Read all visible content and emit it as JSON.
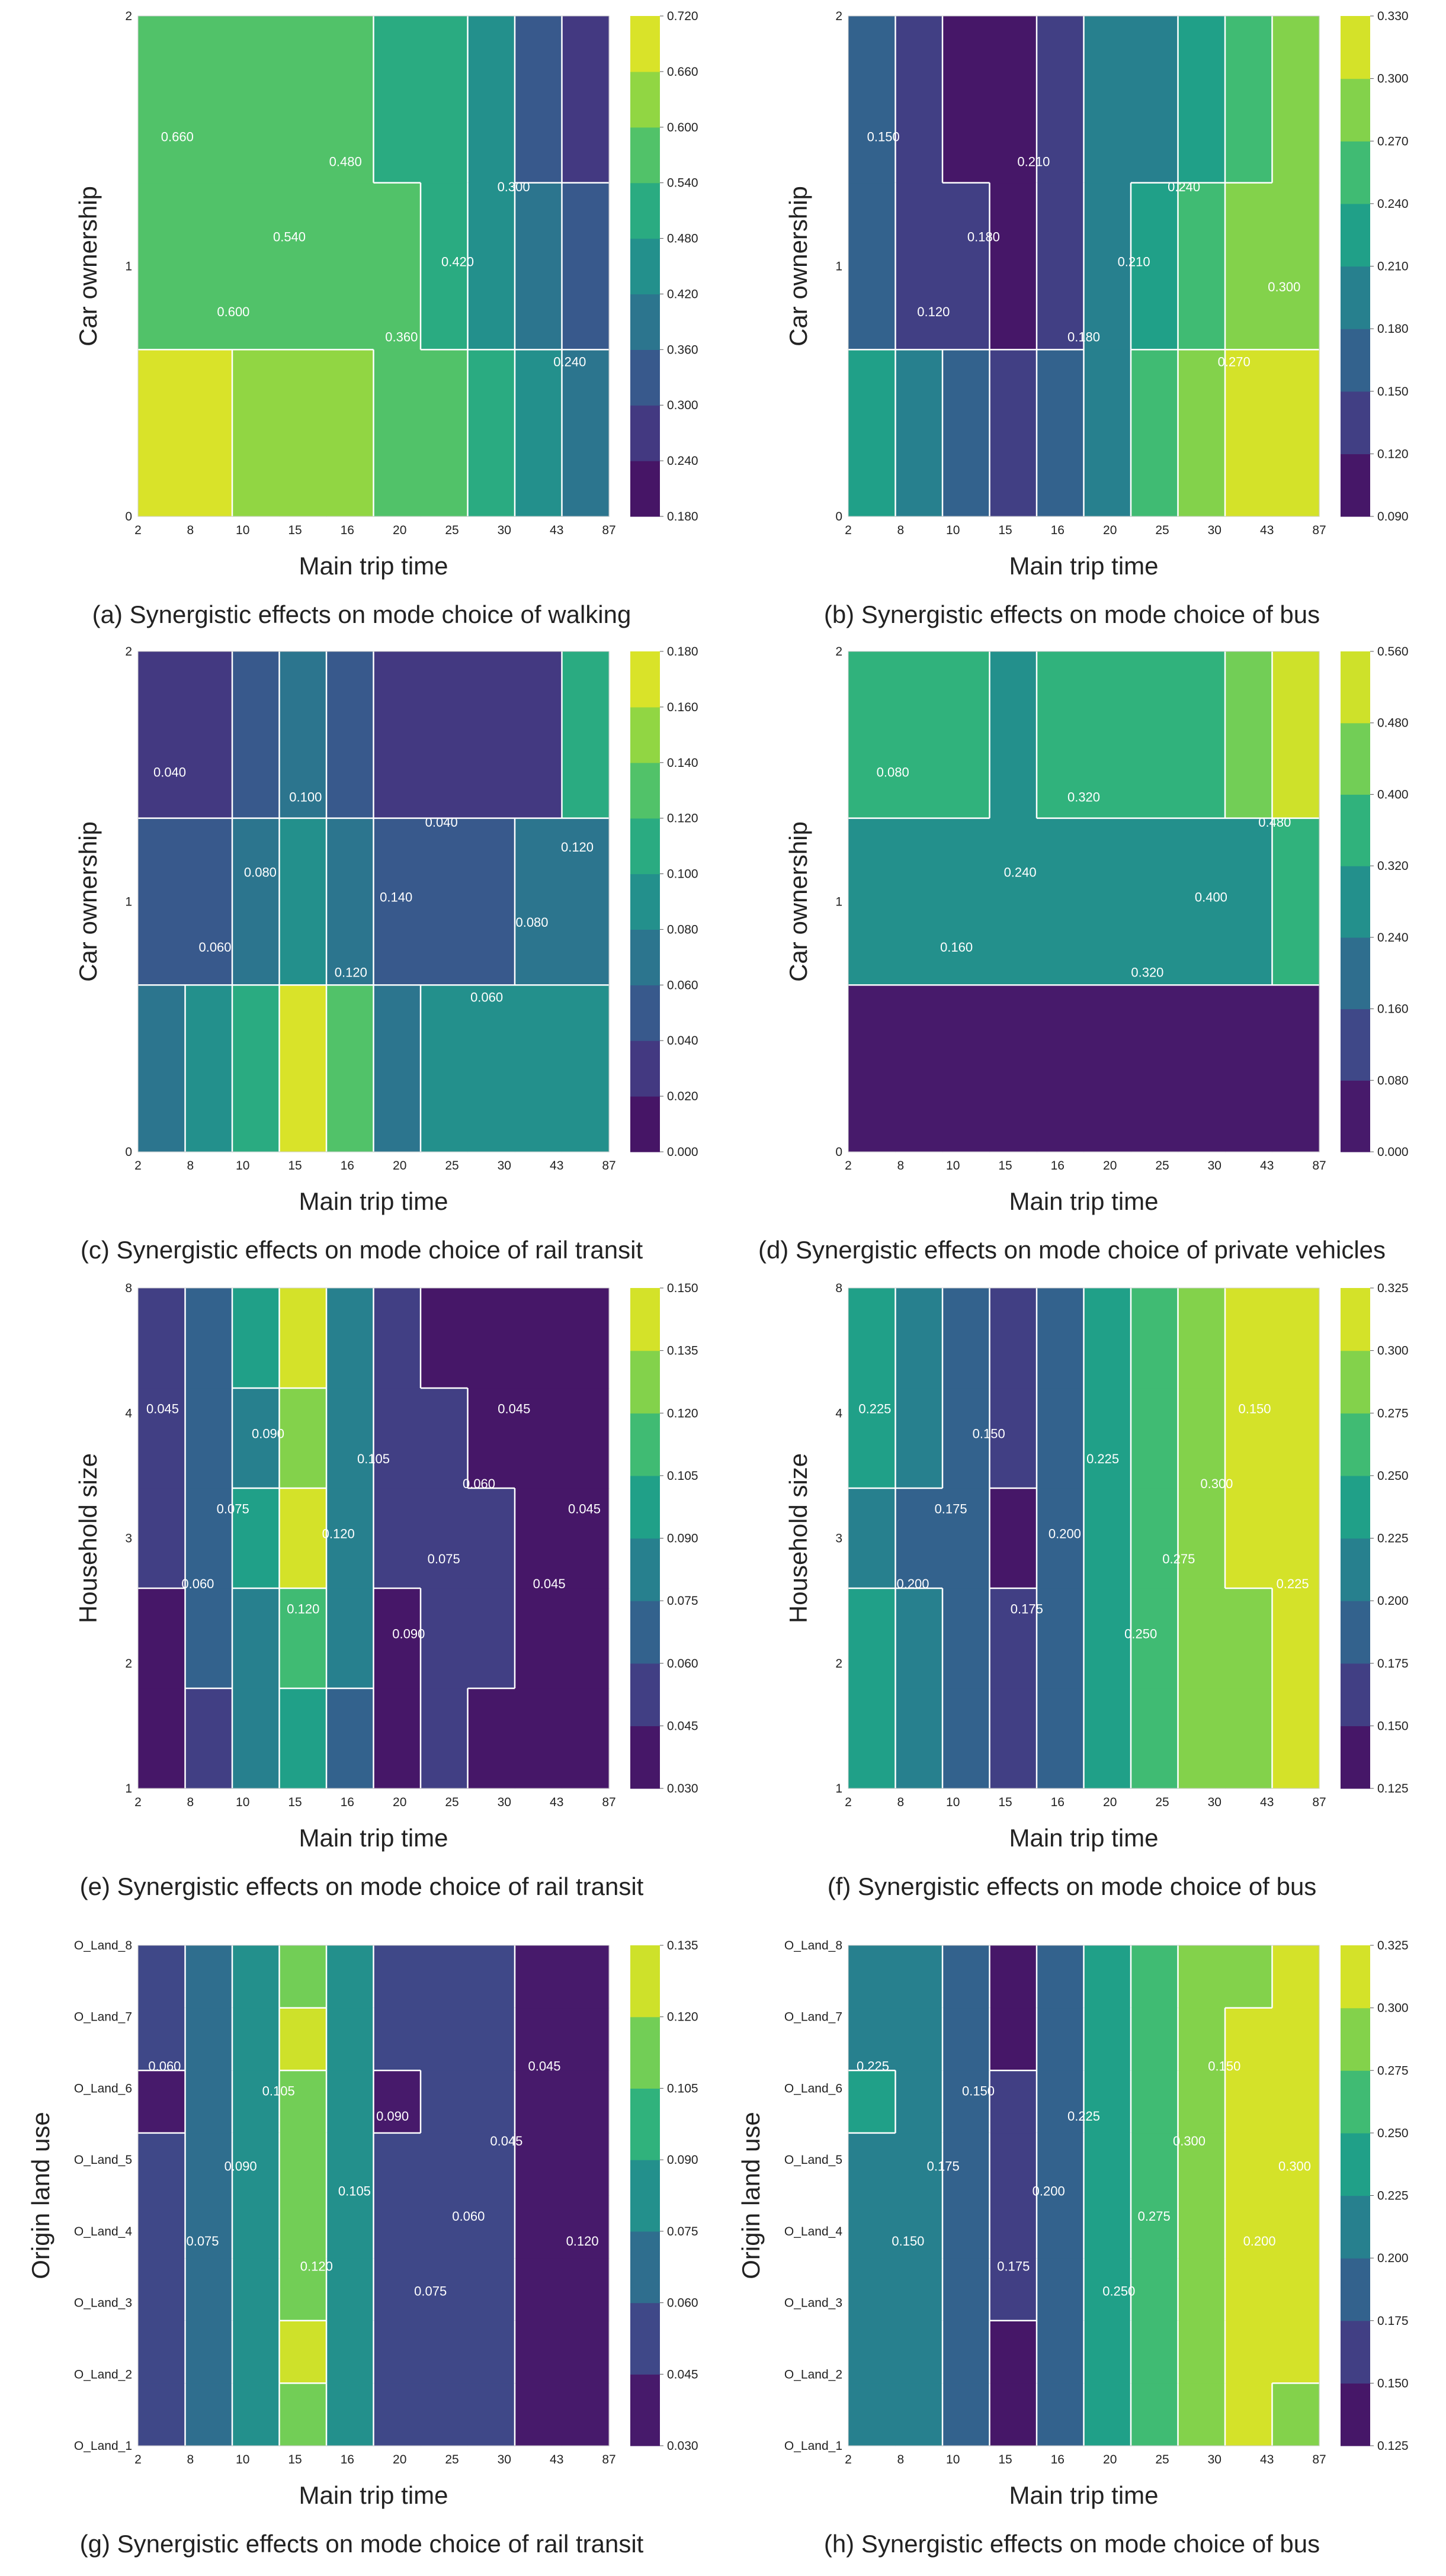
{
  "page": {
    "background": "#ffffff"
  },
  "chart_data": [
    {
      "type": "heatmap",
      "caption": "(a) Synergistic effects on mode choice of walking",
      "xlabel": "Main trip time",
      "ylabel": "Car ownership",
      "x": [
        "2",
        "8",
        "10",
        "15",
        "16",
        "20",
        "25",
        "30",
        "43",
        "87"
      ],
      "y": [
        "0",
        "1",
        "2"
      ],
      "colorbar": {
        "ticks": [
          "0.180",
          "0.240",
          "0.300",
          "0.360",
          "0.420",
          "0.480",
          "0.540",
          "0.600",
          "0.660",
          "0.720"
        ],
        "min": 0.18,
        "max": 0.72
      },
      "values": [
        [
          0.66,
          0.66,
          0.64,
          0.62,
          0.61,
          0.59,
          0.55,
          0.5,
          0.46,
          0.4
        ],
        [
          0.57,
          0.58,
          0.6,
          0.57,
          0.56,
          0.55,
          0.53,
          0.48,
          0.4,
          0.34
        ],
        [
          0.54,
          0.55,
          0.55,
          0.55,
          0.54,
          0.52,
          0.49,
          0.45,
          0.35,
          0.28
        ]
      ],
      "contour_labels": [
        "0.660",
        "0.600",
        "0.540",
        "0.480",
        "0.360",
        "0.420",
        "0.300",
        "0.240"
      ]
    },
    {
      "type": "heatmap",
      "caption": "(b) Synergistic effects on mode choice of bus",
      "xlabel": "Main trip time",
      "ylabel": "Car ownership",
      "x": [
        "2",
        "8",
        "10",
        "15",
        "16",
        "20",
        "25",
        "30",
        "43",
        "87"
      ],
      "y": [
        "0",
        "1",
        "2"
      ],
      "colorbar": {
        "ticks": [
          "0.090",
          "0.120",
          "0.150",
          "0.180",
          "0.210",
          "0.240",
          "0.270",
          "0.300",
          "0.330"
        ],
        "min": 0.09,
        "max": 0.33
      },
      "values": [
        [
          0.22,
          0.2,
          0.17,
          0.13,
          0.16,
          0.21,
          0.25,
          0.28,
          0.31,
          0.32
        ],
        [
          0.17,
          0.15,
          0.14,
          0.11,
          0.15,
          0.19,
          0.22,
          0.25,
          0.27,
          0.27
        ],
        [
          0.16,
          0.14,
          0.12,
          0.1,
          0.14,
          0.19,
          0.21,
          0.24,
          0.26,
          0.28
        ]
      ],
      "contour_labels": [
        "0.150",
        "0.120",
        "0.180",
        "0.210",
        "0.180",
        "0.210",
        "0.240",
        "0.270",
        "0.300"
      ]
    },
    {
      "type": "heatmap",
      "caption": "(c) Synergistic effects on mode choice of rail transit",
      "xlabel": "Main trip time",
      "ylabel": "Car ownership",
      "x": [
        "2",
        "8",
        "10",
        "15",
        "16",
        "20",
        "25",
        "30",
        "43",
        "87"
      ],
      "y": [
        "0",
        "1",
        "2"
      ],
      "colorbar": {
        "ticks": [
          "0.000",
          "0.020",
          "0.040",
          "0.060",
          "0.080",
          "0.100",
          "0.120",
          "0.140",
          "0.160",
          "0.180"
        ],
        "min": 0.0,
        "max": 0.18
      },
      "values": [
        [
          0.07,
          0.08,
          0.1,
          0.17,
          0.12,
          0.07,
          0.08,
          0.085,
          0.085,
          0.09
        ],
        [
          0.04,
          0.05,
          0.06,
          0.085,
          0.065,
          0.045,
          0.05,
          0.055,
          0.06,
          0.06
        ],
        [
          0.025,
          0.035,
          0.045,
          0.075,
          0.05,
          0.035,
          0.03,
          0.03,
          0.03,
          0.11
        ]
      ],
      "contour_labels": [
        "0.040",
        "0.060",
        "0.080",
        "0.100",
        "0.120",
        "0.140",
        "0.040",
        "0.060",
        "0.080",
        "0.120"
      ]
    },
    {
      "type": "heatmap",
      "caption": "(d) Synergistic effects on mode choice of private vehicles",
      "xlabel": "Main trip time",
      "ylabel": "Car ownership",
      "x": [
        "2",
        "8",
        "10",
        "15",
        "16",
        "20",
        "25",
        "30",
        "43",
        "87"
      ],
      "y": [
        "0",
        "1",
        "2"
      ],
      "colorbar": {
        "ticks": [
          "0.000",
          "0.080",
          "0.160",
          "0.240",
          "0.320",
          "0.400",
          "0.480",
          "0.560"
        ],
        "min": 0.0,
        "max": 0.56
      },
      "values": [
        [
          0.05,
          0.05,
          0.05,
          0.05,
          0.05,
          0.05,
          0.05,
          0.05,
          0.06,
          0.06
        ],
        [
          0.25,
          0.26,
          0.25,
          0.24,
          0.24,
          0.24,
          0.25,
          0.26,
          0.3,
          0.33
        ],
        [
          0.33,
          0.34,
          0.32,
          0.31,
          0.32,
          0.32,
          0.33,
          0.35,
          0.45,
          0.52
        ]
      ],
      "contour_labels": [
        "0.080",
        "0.160",
        "0.240",
        "0.320",
        "0.320",
        "0.400",
        "0.480"
      ]
    },
    {
      "type": "heatmap",
      "caption": "(e) Synergistic effects on mode choice of rail transit",
      "xlabel": "Main trip time",
      "ylabel": "Household size",
      "x": [
        "2",
        "8",
        "10",
        "15",
        "16",
        "20",
        "25",
        "30",
        "43",
        "87"
      ],
      "y": [
        "1",
        "2",
        "3",
        "4",
        "8"
      ],
      "colorbar": {
        "ticks": [
          "0.030",
          "0.045",
          "0.060",
          "0.075",
          "0.090",
          "0.105",
          "0.120",
          "0.135",
          "0.150"
        ],
        "min": 0.03,
        "max": 0.15
      },
      "values": [
        [
          0.04,
          0.058,
          0.075,
          0.1,
          0.07,
          0.04,
          0.048,
          0.043,
          0.038,
          0.036
        ],
        [
          0.04,
          0.062,
          0.085,
          0.115,
          0.078,
          0.038,
          0.05,
          0.046,
          0.04,
          0.038
        ],
        [
          0.05,
          0.068,
          0.092,
          0.142,
          0.085,
          0.05,
          0.052,
          0.048,
          0.04,
          0.036
        ],
        [
          0.048,
          0.062,
          0.085,
          0.125,
          0.082,
          0.05,
          0.046,
          0.04,
          0.036,
          0.034
        ],
        [
          0.05,
          0.064,
          0.09,
          0.138,
          0.08,
          0.048,
          0.043,
          0.04,
          0.036,
          0.034
        ]
      ],
      "contour_labels": [
        "0.045",
        "0.060",
        "0.075",
        "0.090",
        "0.120",
        "0.120",
        "0.105",
        "0.090",
        "0.075",
        "0.060",
        "0.045",
        "0.045",
        "0.045"
      ]
    },
    {
      "type": "heatmap",
      "caption": "(f) Synergistic effects on mode choice of bus",
      "xlabel": "Main trip time",
      "ylabel": "Household size",
      "x": [
        "2",
        "8",
        "10",
        "15",
        "16",
        "20",
        "25",
        "30",
        "43",
        "87"
      ],
      "y": [
        "1",
        "2",
        "3",
        "4",
        "8"
      ],
      "colorbar": {
        "ticks": [
          "0.125",
          "0.150",
          "0.175",
          "0.200",
          "0.225",
          "0.250",
          "0.275",
          "0.300",
          "0.325"
        ],
        "min": 0.125,
        "max": 0.325
      },
      "values": [
        [
          0.235,
          0.205,
          0.185,
          0.165,
          0.195,
          0.23,
          0.255,
          0.275,
          0.295,
          0.305
        ],
        [
          0.23,
          0.205,
          0.182,
          0.16,
          0.19,
          0.228,
          0.255,
          0.278,
          0.298,
          0.305
        ],
        [
          0.215,
          0.198,
          0.178,
          0.14,
          0.185,
          0.225,
          0.255,
          0.282,
          0.305,
          0.312
        ],
        [
          0.225,
          0.203,
          0.18,
          0.158,
          0.188,
          0.228,
          0.258,
          0.285,
          0.312,
          0.318
        ],
        [
          0.232,
          0.205,
          0.183,
          0.152,
          0.192,
          0.232,
          0.258,
          0.285,
          0.312,
          0.318
        ]
      ],
      "contour_labels": [
        "0.225",
        "0.200",
        "0.175",
        "0.150",
        "0.175",
        "0.200",
        "0.225",
        "0.250",
        "0.275",
        "0.300",
        "0.150",
        "0.225"
      ]
    },
    {
      "type": "heatmap",
      "caption": "(g) Synergistic effects on mode choice of rail transit",
      "xlabel": "Main trip time",
      "ylabel": "Origin land use",
      "x": [
        "2",
        "8",
        "10",
        "15",
        "16",
        "20",
        "25",
        "30",
        "43",
        "87"
      ],
      "y": [
        "O_Land_1",
        "O_Land_2",
        "O_Land_3",
        "O_Land_4",
        "O_Land_5",
        "O_Land_6",
        "O_Land_7",
        "O_Land_8"
      ],
      "colorbar": {
        "ticks": [
          "0.030",
          "0.045",
          "0.060",
          "0.075",
          "0.090",
          "0.105",
          "0.120",
          "0.135"
        ],
        "min": 0.03,
        "max": 0.135
      },
      "values": [
        [
          0.05,
          0.068,
          0.085,
          0.118,
          0.078,
          0.05,
          0.048,
          0.046,
          0.04,
          0.036
        ],
        [
          0.06,
          0.073,
          0.09,
          0.132,
          0.082,
          0.052,
          0.05,
          0.046,
          0.04,
          0.036
        ],
        [
          0.055,
          0.07,
          0.088,
          0.12,
          0.08,
          0.052,
          0.05,
          0.046,
          0.04,
          0.036
        ],
        [
          0.052,
          0.068,
          0.086,
          0.112,
          0.078,
          0.05,
          0.048,
          0.046,
          0.04,
          0.036
        ],
        [
          0.05,
          0.068,
          0.086,
          0.11,
          0.078,
          0.05,
          0.048,
          0.046,
          0.04,
          0.036
        ],
        [
          0.04,
          0.065,
          0.084,
          0.108,
          0.077,
          0.04,
          0.048,
          0.046,
          0.04,
          0.036
        ],
        [
          0.05,
          0.068,
          0.088,
          0.126,
          0.08,
          0.05,
          0.048,
          0.046,
          0.04,
          0.036
        ],
        [
          0.052,
          0.068,
          0.086,
          0.112,
          0.078,
          0.05,
          0.048,
          0.046,
          0.04,
          0.036
        ]
      ],
      "contour_labels": [
        "0.060",
        "0.075",
        "0.090",
        "0.105",
        "0.120",
        "0.105",
        "0.090",
        "0.075",
        "0.060",
        "0.045",
        "0.045",
        "0.120"
      ]
    },
    {
      "type": "heatmap",
      "caption": "(h) Synergistic effects on mode choice of bus",
      "xlabel": "Main trip time",
      "ylabel": "Origin land use",
      "x": [
        "2",
        "8",
        "10",
        "15",
        "16",
        "20",
        "25",
        "30",
        "43",
        "87"
      ],
      "y": [
        "O_Land_1",
        "O_Land_2",
        "O_Land_3",
        "O_Land_4",
        "O_Land_5",
        "O_Land_6",
        "O_Land_7",
        "O_Land_8"
      ],
      "colorbar": {
        "ticks": [
          "0.125",
          "0.150",
          "0.175",
          "0.200",
          "0.225",
          "0.250",
          "0.275",
          "0.300",
          "0.325"
        ],
        "min": 0.125,
        "max": 0.325
      },
      "values": [
        [
          0.222,
          0.2,
          0.18,
          0.142,
          0.188,
          0.225,
          0.258,
          0.282,
          0.305,
          0.275
        ],
        [
          0.222,
          0.2,
          0.18,
          0.145,
          0.188,
          0.225,
          0.258,
          0.282,
          0.308,
          0.312
        ],
        [
          0.222,
          0.2,
          0.18,
          0.155,
          0.188,
          0.225,
          0.258,
          0.285,
          0.31,
          0.318
        ],
        [
          0.222,
          0.2,
          0.18,
          0.16,
          0.188,
          0.225,
          0.258,
          0.285,
          0.31,
          0.318
        ],
        [
          0.222,
          0.2,
          0.18,
          0.16,
          0.188,
          0.225,
          0.258,
          0.285,
          0.31,
          0.318
        ],
        [
          0.23,
          0.202,
          0.18,
          0.16,
          0.188,
          0.225,
          0.258,
          0.285,
          0.31,
          0.318
        ],
        [
          0.222,
          0.2,
          0.18,
          0.15,
          0.188,
          0.225,
          0.258,
          0.282,
          0.305,
          0.312
        ],
        [
          0.222,
          0.2,
          0.18,
          0.14,
          0.188,
          0.225,
          0.258,
          0.28,
          0.3,
          0.305
        ]
      ],
      "contour_labels": [
        "0.225",
        "0.150",
        "0.175",
        "0.150",
        "0.175",
        "0.200",
        "0.225",
        "0.250",
        "0.275",
        "0.300",
        "0.150",
        "0.200",
        "0.300"
      ]
    }
  ]
}
